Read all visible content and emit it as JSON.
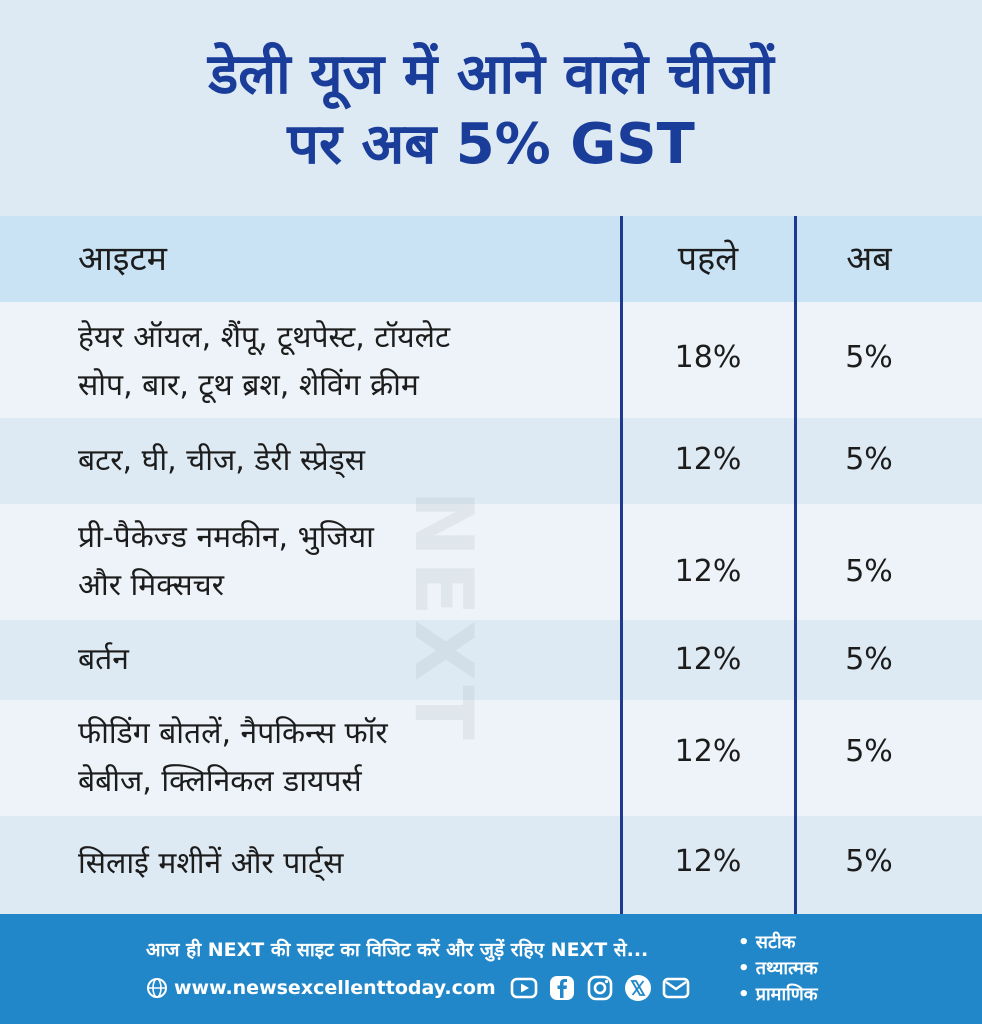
{
  "title": {
    "line1": "डेली यूज में आने वाले चीजों",
    "line2": "पर अब 5% GST"
  },
  "table": {
    "headers": {
      "item": "आइटम",
      "before": "पहले",
      "after": "अब"
    },
    "rows": [
      {
        "item_line1": "हेयर ऑयल, शैंपू, टूथपेस्ट, टॉयलेट",
        "item_line2": "सोप, बार, टूथ ब्रश, शेविंग क्रीम",
        "before": "18%",
        "after": "5%"
      },
      {
        "item_line1": "बटर, घी, चीज, डेरी स्प्रेड्स",
        "item_line2": "",
        "before": "12%",
        "after": "5%"
      },
      {
        "item_line1": "प्री-पैकेज्ड नमकीन, भुजिया",
        "item_line2": "और मिक्सचर",
        "before": "12%",
        "after": "5%"
      },
      {
        "item_line1": "बर्तन",
        "item_line2": "",
        "before": "12%",
        "after": "5%"
      },
      {
        "item_line1": "फीडिंग बोतलें, नैपकिन्स फॉर",
        "item_line2": "बेबीज, क्लिनिकल डायपर्स",
        "before": "12%",
        "after": "5%"
      },
      {
        "item_line1": "सिलाई मशीनें और पार्ट्स",
        "item_line2": "",
        "before": "12%",
        "after": "5%"
      }
    ]
  },
  "watermark": {
    "text": "NEXT"
  },
  "footer": {
    "cta": "आज ही NEXT की साइट का विजिट करें और जुड़ें रहिए NEXT से...",
    "url": "www.newsexcellenttoday.com",
    "tags": [
      "• सटीक",
      "• तथ्यात्मक",
      "• प्रामाणिक"
    ],
    "icons": [
      "globe-icon",
      "youtube-icon",
      "facebook-icon",
      "instagram-icon",
      "x-icon",
      "mail-icon"
    ]
  },
  "colors": {
    "title": "#1a3d9a",
    "header_row": "#c9e3f4",
    "row_alt": "#deeaf3",
    "row_plain": "#edf3f8",
    "divider": "#1e3a8f",
    "footer": "#2287c8"
  }
}
